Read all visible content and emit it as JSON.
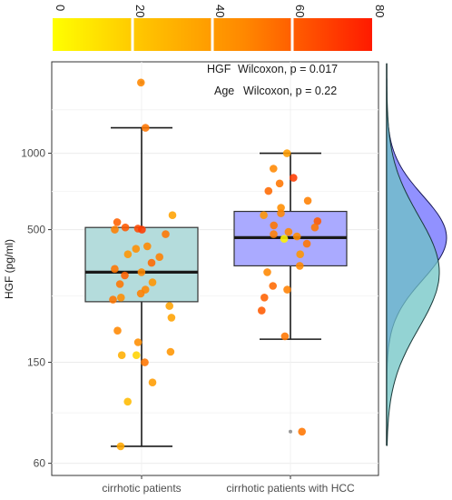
{
  "chart_data": {
    "type": "box",
    "title": "",
    "ylabel": "HGF (pg/ml)",
    "xlabel": "",
    "y_scale": "log",
    "ylim": [
      56,
      2200
    ],
    "y_ticks": [
      60,
      150,
      500,
      1000
    ],
    "y_tick_labels": [
      "60",
      "150",
      "500",
      "1000"
    ],
    "categories": [
      "cirrhotic patients",
      "cirrhotic patients with HCC"
    ],
    "colorbar": {
      "variable": "Age",
      "range": [
        0,
        80
      ],
      "ticks": [
        "0",
        "20",
        "40",
        "60",
        "80"
      ],
      "colors": [
        "#ffff00",
        "#ffd000",
        "#ff9900",
        "#ff5a00",
        "#ff0000"
      ]
    },
    "annotations": [
      {
        "label": "HGF",
        "text": "Wilcoxon, p = 0.017"
      },
      {
        "label": "Age",
        "text": "Wilcoxon, p = 0.22"
      }
    ],
    "grid": true,
    "boxes": [
      {
        "category": "cirrhotic patients",
        "fill": "#b4dcdc",
        "whisker_low": 70,
        "q1": 260,
        "median": 340,
        "q3": 510,
        "whisker_high": 1260,
        "outliers": [
          1900
        ],
        "points": [
          {
            "y": 1900,
            "age": 50
          },
          {
            "y": 1260,
            "age": 55
          },
          {
            "y": 535,
            "age": 60
          },
          {
            "y": 510,
            "age": 62
          },
          {
            "y": 505,
            "age": 66
          },
          {
            "y": 500,
            "age": 70
          },
          {
            "y": 500,
            "age": 52
          },
          {
            "y": 480,
            "age": 55
          },
          {
            "y": 430,
            "age": 50
          },
          {
            "y": 420,
            "age": 48
          },
          {
            "y": 400,
            "age": 45
          },
          {
            "y": 390,
            "age": 52
          },
          {
            "y": 370,
            "age": 58
          },
          {
            "y": 350,
            "age": 55
          },
          {
            "y": 340,
            "age": 50
          },
          {
            "y": 330,
            "age": 60
          },
          {
            "y": 310,
            "age": 45
          },
          {
            "y": 305,
            "age": 55
          },
          {
            "y": 290,
            "age": 50
          },
          {
            "y": 280,
            "age": 52
          },
          {
            "y": 270,
            "age": 48
          },
          {
            "y": 265,
            "age": 55
          },
          {
            "y": 250,
            "age": 40
          },
          {
            "y": 225,
            "age": 40
          },
          {
            "y": 200,
            "age": 50
          },
          {
            "y": 180,
            "age": 48
          },
          {
            "y": 165,
            "age": 45
          },
          {
            "y": 160,
            "age": 35
          },
          {
            "y": 160,
            "age": 20
          },
          {
            "y": 150,
            "age": 55
          },
          {
            "y": 125,
            "age": 42
          },
          {
            "y": 105,
            "age": 30
          },
          {
            "y": 70,
            "age": 38
          },
          {
            "y": 570,
            "age": 40
          }
        ]
      },
      {
        "category": "cirrhotic patients with HCC",
        "fill": "#aaaaff",
        "whisker_low": 185,
        "q1": 360,
        "median": 465,
        "q3": 590,
        "whisker_high": 1000,
        "outliers": [
          80
        ],
        "points": [
          {
            "y": 1000,
            "age": 42
          },
          {
            "y": 870,
            "age": 50
          },
          {
            "y": 800,
            "age": 70
          },
          {
            "y": 760,
            "age": 55
          },
          {
            "y": 710,
            "age": 58
          },
          {
            "y": 650,
            "age": 52
          },
          {
            "y": 610,
            "age": 48
          },
          {
            "y": 580,
            "age": 50
          },
          {
            "y": 570,
            "age": 45
          },
          {
            "y": 540,
            "age": 62
          },
          {
            "y": 520,
            "age": 55
          },
          {
            "y": 510,
            "age": 55
          },
          {
            "y": 490,
            "age": 50
          },
          {
            "y": 480,
            "age": 52
          },
          {
            "y": 470,
            "age": 48
          },
          {
            "y": 460,
            "age": 5
          },
          {
            "y": 440,
            "age": 55
          },
          {
            "y": 400,
            "age": 45
          },
          {
            "y": 340,
            "age": 50
          },
          {
            "y": 300,
            "age": 58
          },
          {
            "y": 290,
            "age": 52
          },
          {
            "y": 270,
            "age": 60
          },
          {
            "y": 240,
            "age": 62
          },
          {
            "y": 190,
            "age": 55
          },
          {
            "y": 80,
            "age": 55
          },
          {
            "y": 360,
            "age": 50
          }
        ]
      }
    ],
    "density_marginal": [
      {
        "category": "cirrhotic patients",
        "color": "#6fc4c4"
      },
      {
        "category": "cirrhotic patients with HCC",
        "color": "#6c6cff"
      }
    ]
  }
}
